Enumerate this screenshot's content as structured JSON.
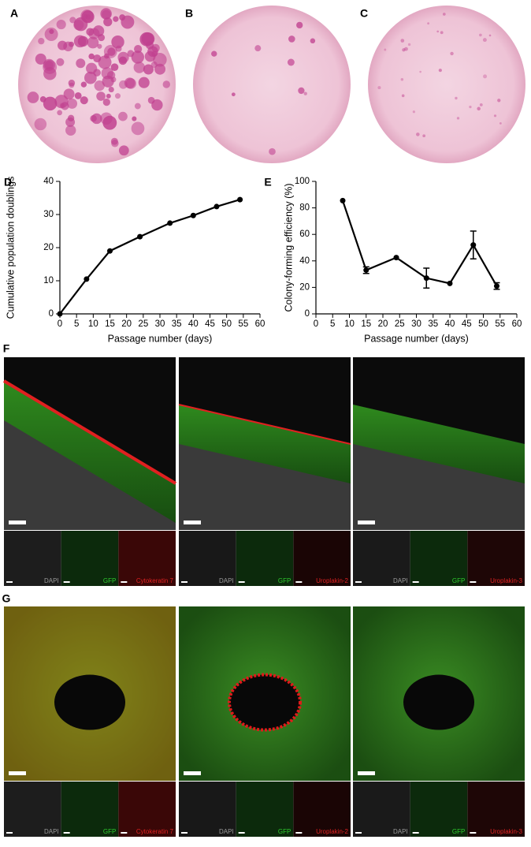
{
  "panel_labels": [
    "A",
    "B",
    "C",
    "D",
    "E",
    "F",
    "G"
  ],
  "chart_data": [
    {
      "type": "line",
      "x_label": "Passage number (days)",
      "y_label": "Cumulative population doublings",
      "x": [
        0,
        8,
        15,
        24,
        33,
        40,
        47,
        54
      ],
      "series": [
        {
          "color": "#000000",
          "values": [
            0,
            10.5,
            19,
            23.3,
            27.4,
            29.7,
            32.4,
            34.5
          ]
        }
      ],
      "xlim": [
        0,
        60
      ],
      "xticks": [
        0,
        5,
        10,
        15,
        20,
        25,
        30,
        35,
        40,
        45,
        50,
        55,
        60
      ],
      "ylim": [
        0,
        40
      ],
      "yticks": [
        0,
        10,
        20,
        30,
        40
      ]
    },
    {
      "type": "line",
      "x_label": "Passage number (days)",
      "y_label": "Colony-forming efficiency (%)",
      "x": [
        8,
        15,
        24,
        33,
        40,
        47,
        54
      ],
      "series": [
        {
          "color": "#000000",
          "values": [
            85.5,
            33,
            42.5,
            27,
            23,
            52,
            21
          ],
          "errors": [
            null,
            2.5,
            null,
            7.5,
            null,
            10.5,
            2.5
          ]
        }
      ],
      "xlim": [
        0,
        60
      ],
      "xticks": [
        0,
        5,
        10,
        15,
        20,
        25,
        30,
        35,
        40,
        45,
        50,
        55,
        60
      ],
      "ylim": [
        0,
        100
      ],
      "yticks": [
        0,
        20,
        40,
        60,
        80,
        100
      ]
    }
  ],
  "micrographs": [
    {
      "panels": [
        [
          "DAPI",
          "GFP",
          "Cytokeratin 7"
        ],
        [
          "DAPI",
          "GFP",
          "Uroplakin-2"
        ],
        [
          "DAPI",
          "GFP",
          "Uroplakin-3"
        ]
      ]
    },
    {
      "panels": [
        [
          "DAPI",
          "GFP",
          "Cytokeratin 7"
        ],
        [
          "DAPI",
          "GFP",
          "Uroplakin-2"
        ],
        [
          "DAPI",
          "GFP",
          "Uroplakin-3"
        ]
      ]
    }
  ]
}
